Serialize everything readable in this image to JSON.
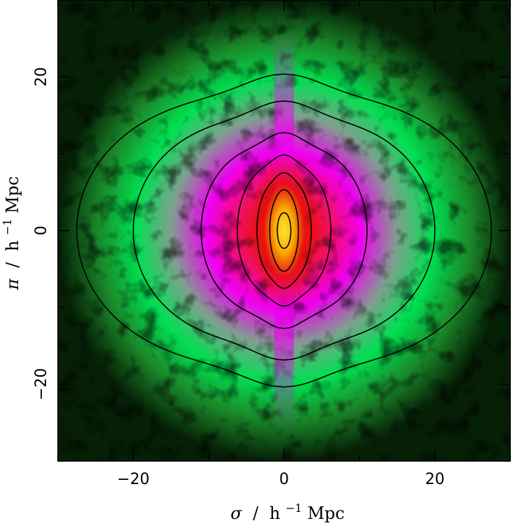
{
  "chart_data": {
    "type": "heatmap",
    "title": "",
    "xlabel": {
      "symbol": "σ",
      "unit_pre": "h",
      "unit_sup": "−1",
      "unit_post": "Mpc"
    },
    "ylabel": {
      "symbol": "π",
      "unit_pre": "h",
      "unit_sup": "−1",
      "unit_post": "Mpc"
    },
    "xlim": [
      -30,
      30
    ],
    "ylim": [
      -30,
      30
    ],
    "xticks": [
      {
        "value": -20,
        "label": "−20"
      },
      {
        "value": 0,
        "label": "0"
      },
      {
        "value": 20,
        "label": "20"
      }
    ],
    "yticks": [
      {
        "value": -20,
        "label": "−20"
      },
      {
        "value": 0,
        "label": "0"
      },
      {
        "value": 20,
        "label": "20"
      }
    ],
    "minor_tick_step": 10,
    "colormap": [
      "#000000",
      "#1a5a1a",
      "#00e050",
      "#7fa08f",
      "#f000f0",
      "#f01060",
      "#e81010",
      "#f6a800",
      "#ffe830"
    ],
    "contours": [
      {
        "level": 1,
        "sigma_extent": 27.5,
        "pi_extent": 20.3
      },
      {
        "level": 2,
        "sigma_extent": 20.0,
        "pi_extent": 16.8
      },
      {
        "level": 3,
        "sigma_extent": 11.0,
        "pi_extent": 12.7
      },
      {
        "level": 4,
        "sigma_extent": 6.2,
        "pi_extent": 9.8
      },
      {
        "level": 5,
        "sigma_extent": 3.6,
        "pi_extent": 7.5
      },
      {
        "level": 6,
        "sigma_extent": 1.9,
        "pi_extent": 5.3
      },
      {
        "level": 7,
        "sigma_extent": 0.9,
        "pi_extent": 2.3
      }
    ]
  }
}
